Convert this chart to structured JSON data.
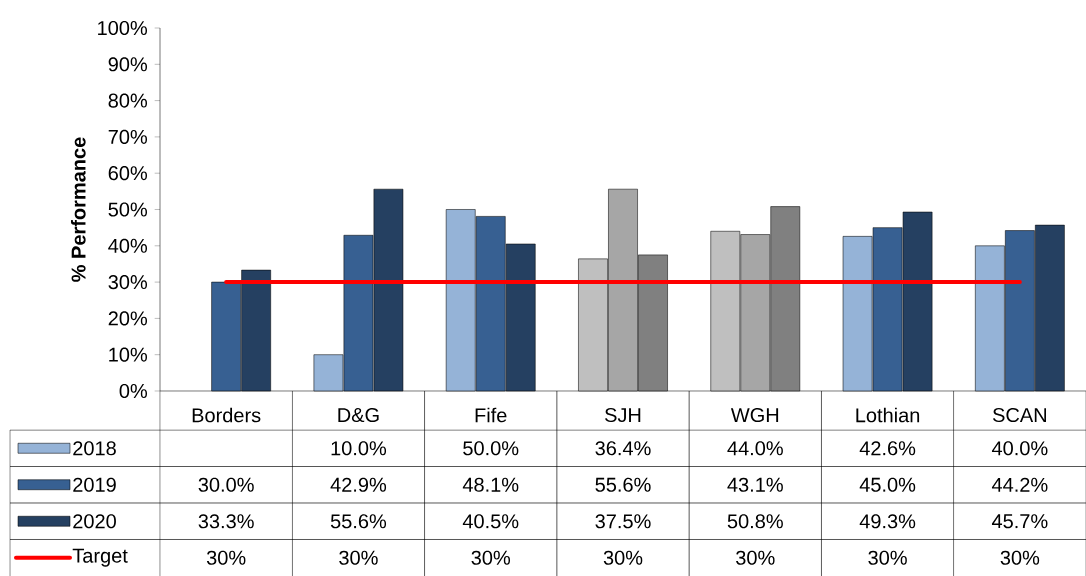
{
  "chart_data": {
    "type": "bar",
    "ylabel": "% Performance",
    "categories": [
      "Borders",
      "D&G",
      "Fife",
      "SJH",
      "WGH",
      "Lothian",
      "SCAN"
    ],
    "series": [
      {
        "name": "2018",
        "color": "#95b3d7",
        "colors": [
          "#95b3d7",
          "#95b3d7",
          "#95b3d7",
          "#bfbfbf",
          "#bfbfbf",
          "#95b3d7",
          "#95b3d7"
        ],
        "values": [
          null,
          10.0,
          50.0,
          36.4,
          44.0,
          42.6,
          40.0
        ],
        "value_labels": [
          null,
          "10.0%",
          "50.0%",
          "36.4%",
          "44.0%",
          "42.6%",
          "40.0%"
        ]
      },
      {
        "name": "2019",
        "color": "#376092",
        "colors": [
          "#376092",
          "#376092",
          "#376092",
          "#a6a6a6",
          "#a6a6a6",
          "#376092",
          "#376092"
        ],
        "values": [
          30.0,
          42.9,
          48.1,
          55.6,
          43.1,
          45.0,
          44.2
        ],
        "value_labels": [
          "30.0%",
          "42.9%",
          "48.1%",
          "55.6%",
          "43.1%",
          "45.0%",
          "44.2%"
        ]
      },
      {
        "name": "2020",
        "color": "#254061",
        "colors": [
          "#254061",
          "#254061",
          "#254061",
          "#808080",
          "#808080",
          "#254061",
          "#254061"
        ],
        "values": [
          33.3,
          55.6,
          40.5,
          37.5,
          50.8,
          49.3,
          45.7
        ],
        "value_labels": [
          "33.3%",
          "55.6%",
          "40.5%",
          "37.5%",
          "50.8%",
          "49.3%",
          "45.7%"
        ]
      },
      {
        "name": "Target",
        "type": "line",
        "color": "#ff0000",
        "values": [
          30,
          30,
          30,
          30,
          30,
          30,
          30
        ],
        "value_labels": [
          "30%",
          "30%",
          "30%",
          "30%",
          "30%",
          "30%",
          "30%"
        ]
      }
    ],
    "ylim": [
      0,
      100
    ],
    "yticks": [
      {
        "value": 0,
        "label": "0%"
      },
      {
        "value": 10,
        "label": "10%"
      },
      {
        "value": 20,
        "label": "20%"
      },
      {
        "value": 30,
        "label": "30%"
      },
      {
        "value": 40,
        "label": "40%"
      },
      {
        "value": 50,
        "label": "50%"
      },
      {
        "value": 60,
        "label": "60%"
      },
      {
        "value": 70,
        "label": "70%"
      },
      {
        "value": 80,
        "label": "80%"
      },
      {
        "value": 90,
        "label": "90%"
      },
      {
        "value": 100,
        "label": "100%"
      }
    ],
    "legend": "bottom"
  }
}
